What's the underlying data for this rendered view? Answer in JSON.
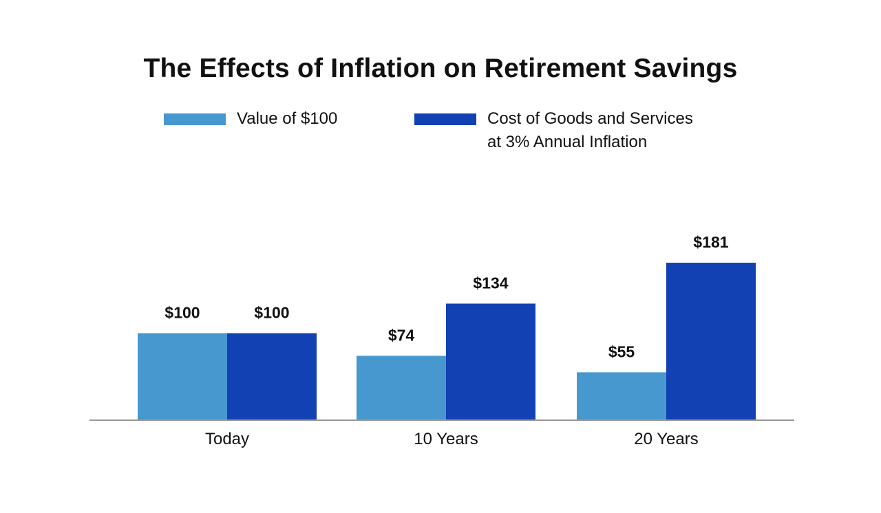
{
  "chart_data": {
    "type": "bar",
    "title": "The Effects of Inflation on Retirement Savings",
    "categories": [
      "Today",
      "10 Years",
      "20 Years"
    ],
    "series": [
      {
        "name": "Value of $100",
        "legend_lines": [
          "Value of $100"
        ],
        "color": "#4898d0",
        "values": [
          100,
          74,
          55
        ],
        "labels": [
          "$100",
          "$74",
          "$55"
        ]
      },
      {
        "name": "Cost of Goods and Services at 3% Annual Inflation",
        "legend_lines": [
          "Cost of Goods and Services",
          "at 3% Annual Inflation"
        ],
        "color": "#1241b3",
        "values": [
          100,
          134,
          181
        ],
        "labels": [
          "$100",
          "$134",
          "$181"
        ]
      }
    ],
    "xlabel": "",
    "ylabel": "",
    "ylim": [
      0,
      181
    ],
    "grid": false,
    "legend_position": "top",
    "axis_color": "#999999"
  }
}
